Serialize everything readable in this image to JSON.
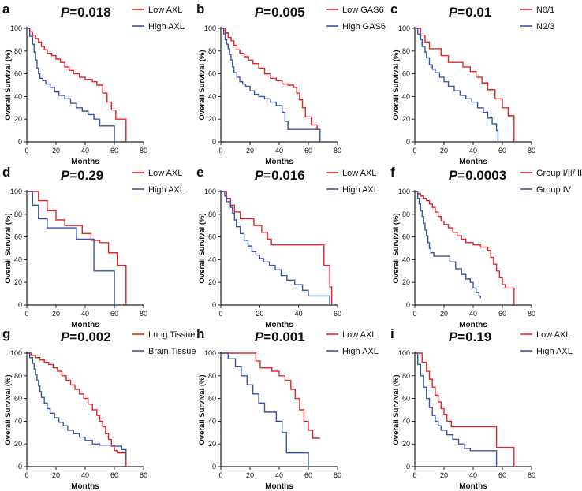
{
  "colors": {
    "red": "#e3242b",
    "blue": "#3a55a4",
    "axis": "#222222"
  },
  "chart_data": [
    {
      "type": "line",
      "panel": "a",
      "pvalue": "P=0.018",
      "xlabel": "Months",
      "ylabel": "Overall Survival (%)",
      "xlim": [
        0,
        80
      ],
      "ylim": [
        0,
        100
      ],
      "xticks": [
        0,
        20,
        40,
        60,
        80
      ],
      "yticks": [
        0,
        20,
        40,
        60,
        80,
        100
      ],
      "legend_position": "top-right",
      "series": [
        {
          "name": "Low AXL",
          "color": "red",
          "x": [
            0,
            2,
            4,
            6,
            8,
            10,
            12,
            14,
            17,
            20,
            23,
            26,
            29,
            32,
            36,
            40,
            45,
            48,
            52,
            55,
            58,
            61,
            65,
            68,
            68
          ],
          "y": [
            100,
            97,
            94,
            91,
            88,
            84,
            81,
            78,
            76,
            73,
            70,
            66,
            63,
            60,
            57,
            55,
            53,
            50,
            43,
            35,
            28,
            20,
            20,
            20,
            0
          ]
        },
        {
          "name": "High AXL",
          "color": "blue",
          "x": [
            0,
            2,
            4,
            5,
            6,
            7,
            8,
            9,
            11,
            13,
            16,
            19,
            22,
            26,
            30,
            34,
            38,
            42,
            46,
            50,
            53,
            57,
            60,
            60
          ],
          "y": [
            100,
            93,
            86,
            79,
            72,
            65,
            60,
            56,
            54,
            51,
            48,
            44,
            41,
            38,
            34,
            30,
            27,
            24,
            20,
            14,
            14,
            14,
            14,
            0
          ]
        }
      ]
    },
    {
      "type": "line",
      "panel": "b",
      "pvalue": "P=0.005",
      "xlabel": "Months",
      "ylabel": "Overall Survival (%)",
      "xlim": [
        0,
        80
      ],
      "ylim": [
        0,
        100
      ],
      "xticks": [
        0,
        20,
        40,
        60,
        80
      ],
      "yticks": [
        0,
        20,
        40,
        60,
        80,
        100
      ],
      "legend_position": "top-right",
      "series": [
        {
          "name": "Low GAS6",
          "color": "red",
          "x": [
            0,
            3,
            5,
            7,
            9,
            11,
            13,
            16,
            19,
            22,
            26,
            30,
            34,
            38,
            42,
            46,
            50,
            52,
            54,
            56,
            58,
            62,
            66,
            68
          ],
          "y": [
            100,
            96,
            92,
            89,
            85,
            81,
            78,
            75,
            72,
            69,
            65,
            60,
            56,
            54,
            51,
            50,
            48,
            43,
            37,
            30,
            22,
            15,
            11,
            11
          ]
        },
        {
          "name": "High GAS6",
          "color": "blue",
          "x": [
            0,
            2,
            3,
            4,
            5,
            6,
            7,
            8,
            9,
            11,
            13,
            15,
            17,
            20,
            23,
            26,
            30,
            34,
            38,
            42,
            44,
            46,
            50,
            55,
            60,
            68,
            68
          ],
          "y": [
            100,
            95,
            90,
            86,
            82,
            77,
            72,
            66,
            61,
            57,
            53,
            51,
            49,
            45,
            42,
            40,
            38,
            35,
            32,
            26,
            18,
            11,
            11,
            11,
            11,
            11,
            0
          ]
        }
      ]
    },
    {
      "type": "line",
      "panel": "c",
      "pvalue": "P=0.01",
      "xlabel": "Months",
      "ylabel": "Overall Survival (%)",
      "xlim": [
        0,
        80
      ],
      "ylim": [
        0,
        100
      ],
      "xticks": [
        0,
        20,
        40,
        60,
        80
      ],
      "yticks": [
        0,
        20,
        40,
        60,
        80,
        100
      ],
      "legend_position": "top-right",
      "series": [
        {
          "name": "N0/1",
          "color": "red",
          "x": [
            0,
            4,
            7,
            10,
            14,
            18,
            23,
            28,
            33,
            38,
            42,
            46,
            50,
            55,
            60,
            64,
            68,
            68
          ],
          "y": [
            100,
            94,
            88,
            82,
            82,
            76,
            70,
            70,
            66,
            62,
            57,
            52,
            46,
            38,
            30,
            23,
            23,
            0
          ]
        },
        {
          "name": "N2/3",
          "color": "blue",
          "x": [
            0,
            2,
            4,
            5,
            7,
            8,
            10,
            12,
            14,
            17,
            20,
            23,
            27,
            31,
            35,
            39,
            43,
            47,
            50,
            53,
            56,
            57,
            57
          ],
          "y": [
            100,
            95,
            90,
            84,
            79,
            74,
            68,
            64,
            61,
            57,
            53,
            49,
            45,
            41,
            38,
            35,
            30,
            26,
            21,
            16,
            10,
            5,
            0
          ]
        }
      ]
    },
    {
      "type": "line",
      "panel": "d",
      "pvalue": "P=0.29",
      "xlabel": "Months",
      "ylabel": "Overall Survival (%)",
      "xlim": [
        0,
        80
      ],
      "ylim": [
        0,
        100
      ],
      "xticks": [
        0,
        20,
        40,
        60,
        80
      ],
      "yticks": [
        0,
        20,
        40,
        60,
        80,
        100
      ],
      "legend_position": "top-right",
      "series": [
        {
          "name": "Low AXL",
          "color": "red",
          "x": [
            0,
            8,
            14,
            20,
            26,
            32,
            38,
            44,
            50,
            56,
            62,
            68,
            68
          ],
          "y": [
            100,
            92,
            83,
            75,
            70,
            70,
            63,
            57,
            55,
            46,
            35,
            35,
            0
          ]
        },
        {
          "name": "High AXL",
          "color": "blue",
          "x": [
            0,
            4,
            8,
            14,
            22,
            28,
            34,
            40,
            44,
            46,
            52,
            58,
            60,
            60
          ],
          "y": [
            100,
            88,
            76,
            68,
            68,
            68,
            58,
            58,
            58,
            30,
            30,
            30,
            30,
            0
          ]
        }
      ]
    },
    {
      "type": "line",
      "panel": "e",
      "pvalue": "P=0.016",
      "xlabel": "Months",
      "ylabel": "Overall Survival (%)",
      "xlim": [
        0,
        60
      ],
      "ylim": [
        0,
        100
      ],
      "xticks": [
        0,
        20,
        40,
        60
      ],
      "yticks": [
        0,
        20,
        40,
        60,
        80,
        100
      ],
      "legend_position": "top-right",
      "series": [
        {
          "name": "Low AXL",
          "color": "red",
          "x": [
            0,
            3,
            5,
            7,
            10,
            13,
            17,
            21,
            24,
            26,
            30,
            36,
            40,
            44,
            48,
            50,
            53,
            55,
            56,
            57,
            57
          ],
          "y": [
            100,
            94,
            88,
            82,
            76,
            76,
            70,
            64,
            58,
            53,
            53,
            53,
            53,
            53,
            53,
            53,
            35,
            35,
            16,
            0,
            0
          ]
        },
        {
          "name": "High AXL",
          "color": "blue",
          "x": [
            0,
            2,
            3,
            5,
            6,
            7,
            8,
            10,
            12,
            14,
            16,
            18,
            20,
            22,
            25,
            28,
            31,
            34,
            38,
            42,
            45,
            50,
            56,
            56
          ],
          "y": [
            100,
            96,
            91,
            86,
            81,
            75,
            69,
            63,
            57,
            52,
            47,
            44,
            41,
            38,
            35,
            31,
            26,
            22,
            18,
            13,
            8,
            8,
            8,
            0
          ]
        }
      ]
    },
    {
      "type": "line",
      "panel": "f",
      "pvalue": "P=0.0003",
      "xlabel": "Months",
      "ylabel": "Overall Survival (%)",
      "xlim": [
        0,
        80
      ],
      "ylim": [
        0,
        100
      ],
      "xticks": [
        0,
        20,
        40,
        60,
        80
      ],
      "yticks": [
        0,
        20,
        40,
        60,
        80,
        100
      ],
      "legend_position": "top-right",
      "series": [
        {
          "name": "Group I/II/III",
          "color": "red",
          "x": [
            0,
            2,
            4,
            6,
            8,
            10,
            12,
            14,
            16,
            18,
            20,
            23,
            26,
            29,
            32,
            35,
            40,
            45,
            50,
            52,
            54,
            56,
            58,
            60,
            62,
            66,
            68,
            68
          ],
          "y": [
            100,
            98,
            96,
            94,
            92,
            89,
            86,
            82,
            78,
            74,
            71,
            68,
            64,
            61,
            58,
            55,
            53,
            51,
            48,
            42,
            36,
            30,
            24,
            18,
            15,
            15,
            15,
            0
          ]
        },
        {
          "name": "Group IV",
          "color": "blue",
          "x": [
            0,
            2,
            3,
            4,
            5,
            6,
            7,
            8,
            9,
            10,
            11,
            13,
            16,
            20,
            24,
            28,
            32,
            35,
            38,
            40,
            42,
            44,
            45
          ],
          "y": [
            100,
            94,
            89,
            83,
            78,
            72,
            66,
            61,
            55,
            50,
            46,
            43,
            43,
            43,
            38,
            32,
            27,
            23,
            20,
            15,
            11,
            8,
            6
          ]
        }
      ]
    },
    {
      "type": "line",
      "panel": "g",
      "pvalue": "P=0.002",
      "xlabel": "Months",
      "ylabel": "Overall Survival (%)",
      "xlim": [
        0,
        80
      ],
      "ylim": [
        0,
        100
      ],
      "xticks": [
        0,
        20,
        40,
        60,
        80
      ],
      "yticks": [
        0,
        20,
        40,
        60,
        80,
        100
      ],
      "legend_position": "top-right",
      "series": [
        {
          "name": "Lung Tissue",
          "color": "red",
          "x": [
            0,
            3,
            6,
            9,
            12,
            15,
            18,
            21,
            24,
            27,
            30,
            33,
            36,
            39,
            42,
            45,
            48,
            50,
            52,
            54,
            56,
            58,
            60,
            62,
            65,
            68,
            68
          ],
          "y": [
            100,
            98,
            96,
            94,
            92,
            90,
            87,
            84,
            80,
            76,
            72,
            68,
            64,
            60,
            55,
            50,
            45,
            40,
            35,
            29,
            24,
            18,
            14,
            12,
            12,
            6,
            0
          ]
        },
        {
          "name": "Brain Tissue",
          "color": "blue",
          "x": [
            0,
            2,
            4,
            5,
            6,
            7,
            8,
            9,
            10,
            12,
            14,
            16,
            19,
            22,
            25,
            28,
            32,
            36,
            40,
            45,
            50,
            55,
            60,
            65,
            68
          ],
          "y": [
            100,
            96,
            91,
            86,
            81,
            76,
            71,
            66,
            61,
            56,
            51,
            47,
            43,
            39,
            36,
            32,
            29,
            26,
            23,
            20,
            19,
            19,
            18,
            15,
            6
          ]
        }
      ]
    },
    {
      "type": "line",
      "panel": "h",
      "pvalue": "P=0.001",
      "xlabel": "Months",
      "ylabel": "Overall Survival (%)",
      "xlim": [
        0,
        80
      ],
      "ylim": [
        0,
        100
      ],
      "xticks": [
        0,
        20,
        40,
        60,
        80
      ],
      "yticks": [
        0,
        20,
        40,
        60,
        80,
        100
      ],
      "legend_position": "top-right",
      "series": [
        {
          "name": "Low AXL",
          "color": "red",
          "x": [
            0,
            10,
            20,
            24,
            27,
            30,
            35,
            40,
            44,
            48,
            51,
            54,
            57,
            60,
            63,
            66,
            68
          ],
          "y": [
            100,
            100,
            100,
            93,
            87,
            87,
            84,
            80,
            76,
            68,
            60,
            50,
            40,
            32,
            25,
            25,
            25
          ]
        },
        {
          "name": "High AXL",
          "color": "blue",
          "x": [
            0,
            5,
            10,
            14,
            18,
            22,
            26,
            30,
            34,
            38,
            42,
            45,
            50,
            55,
            60,
            60
          ],
          "y": [
            100,
            95,
            88,
            80,
            72,
            64,
            56,
            48,
            48,
            40,
            30,
            12,
            12,
            12,
            12,
            0
          ]
        }
      ]
    },
    {
      "type": "line",
      "panel": "i",
      "pvalue": "P=0.19",
      "xlabel": "Months",
      "ylabel": "Overall Survival (%)",
      "xlim": [
        0,
        80
      ],
      "ylim": [
        0,
        100
      ],
      "xticks": [
        0,
        20,
        40,
        60,
        80
      ],
      "yticks": [
        0,
        20,
        40,
        60,
        80,
        100
      ],
      "legend_position": "top-right",
      "series": [
        {
          "name": "Low AXL",
          "color": "red",
          "x": [
            0,
            5,
            8,
            10,
            12,
            14,
            16,
            18,
            20,
            22,
            25,
            30,
            35,
            40,
            45,
            50,
            55,
            56,
            60,
            65,
            68,
            68
          ],
          "y": [
            100,
            92,
            84,
            77,
            70,
            63,
            57,
            51,
            46,
            40,
            35,
            35,
            35,
            35,
            35,
            35,
            35,
            17,
            17,
            17,
            17,
            0
          ]
        },
        {
          "name": "High AXL",
          "color": "blue",
          "x": [
            0,
            2,
            4,
            6,
            8,
            10,
            12,
            14,
            16,
            18,
            22,
            26,
            30,
            34,
            38,
            42,
            46,
            50,
            56,
            56
          ],
          "y": [
            100,
            90,
            80,
            70,
            60,
            52,
            45,
            40,
            36,
            32,
            28,
            24,
            20,
            16,
            14,
            14,
            14,
            14,
            14,
            0
          ]
        }
      ]
    }
  ]
}
